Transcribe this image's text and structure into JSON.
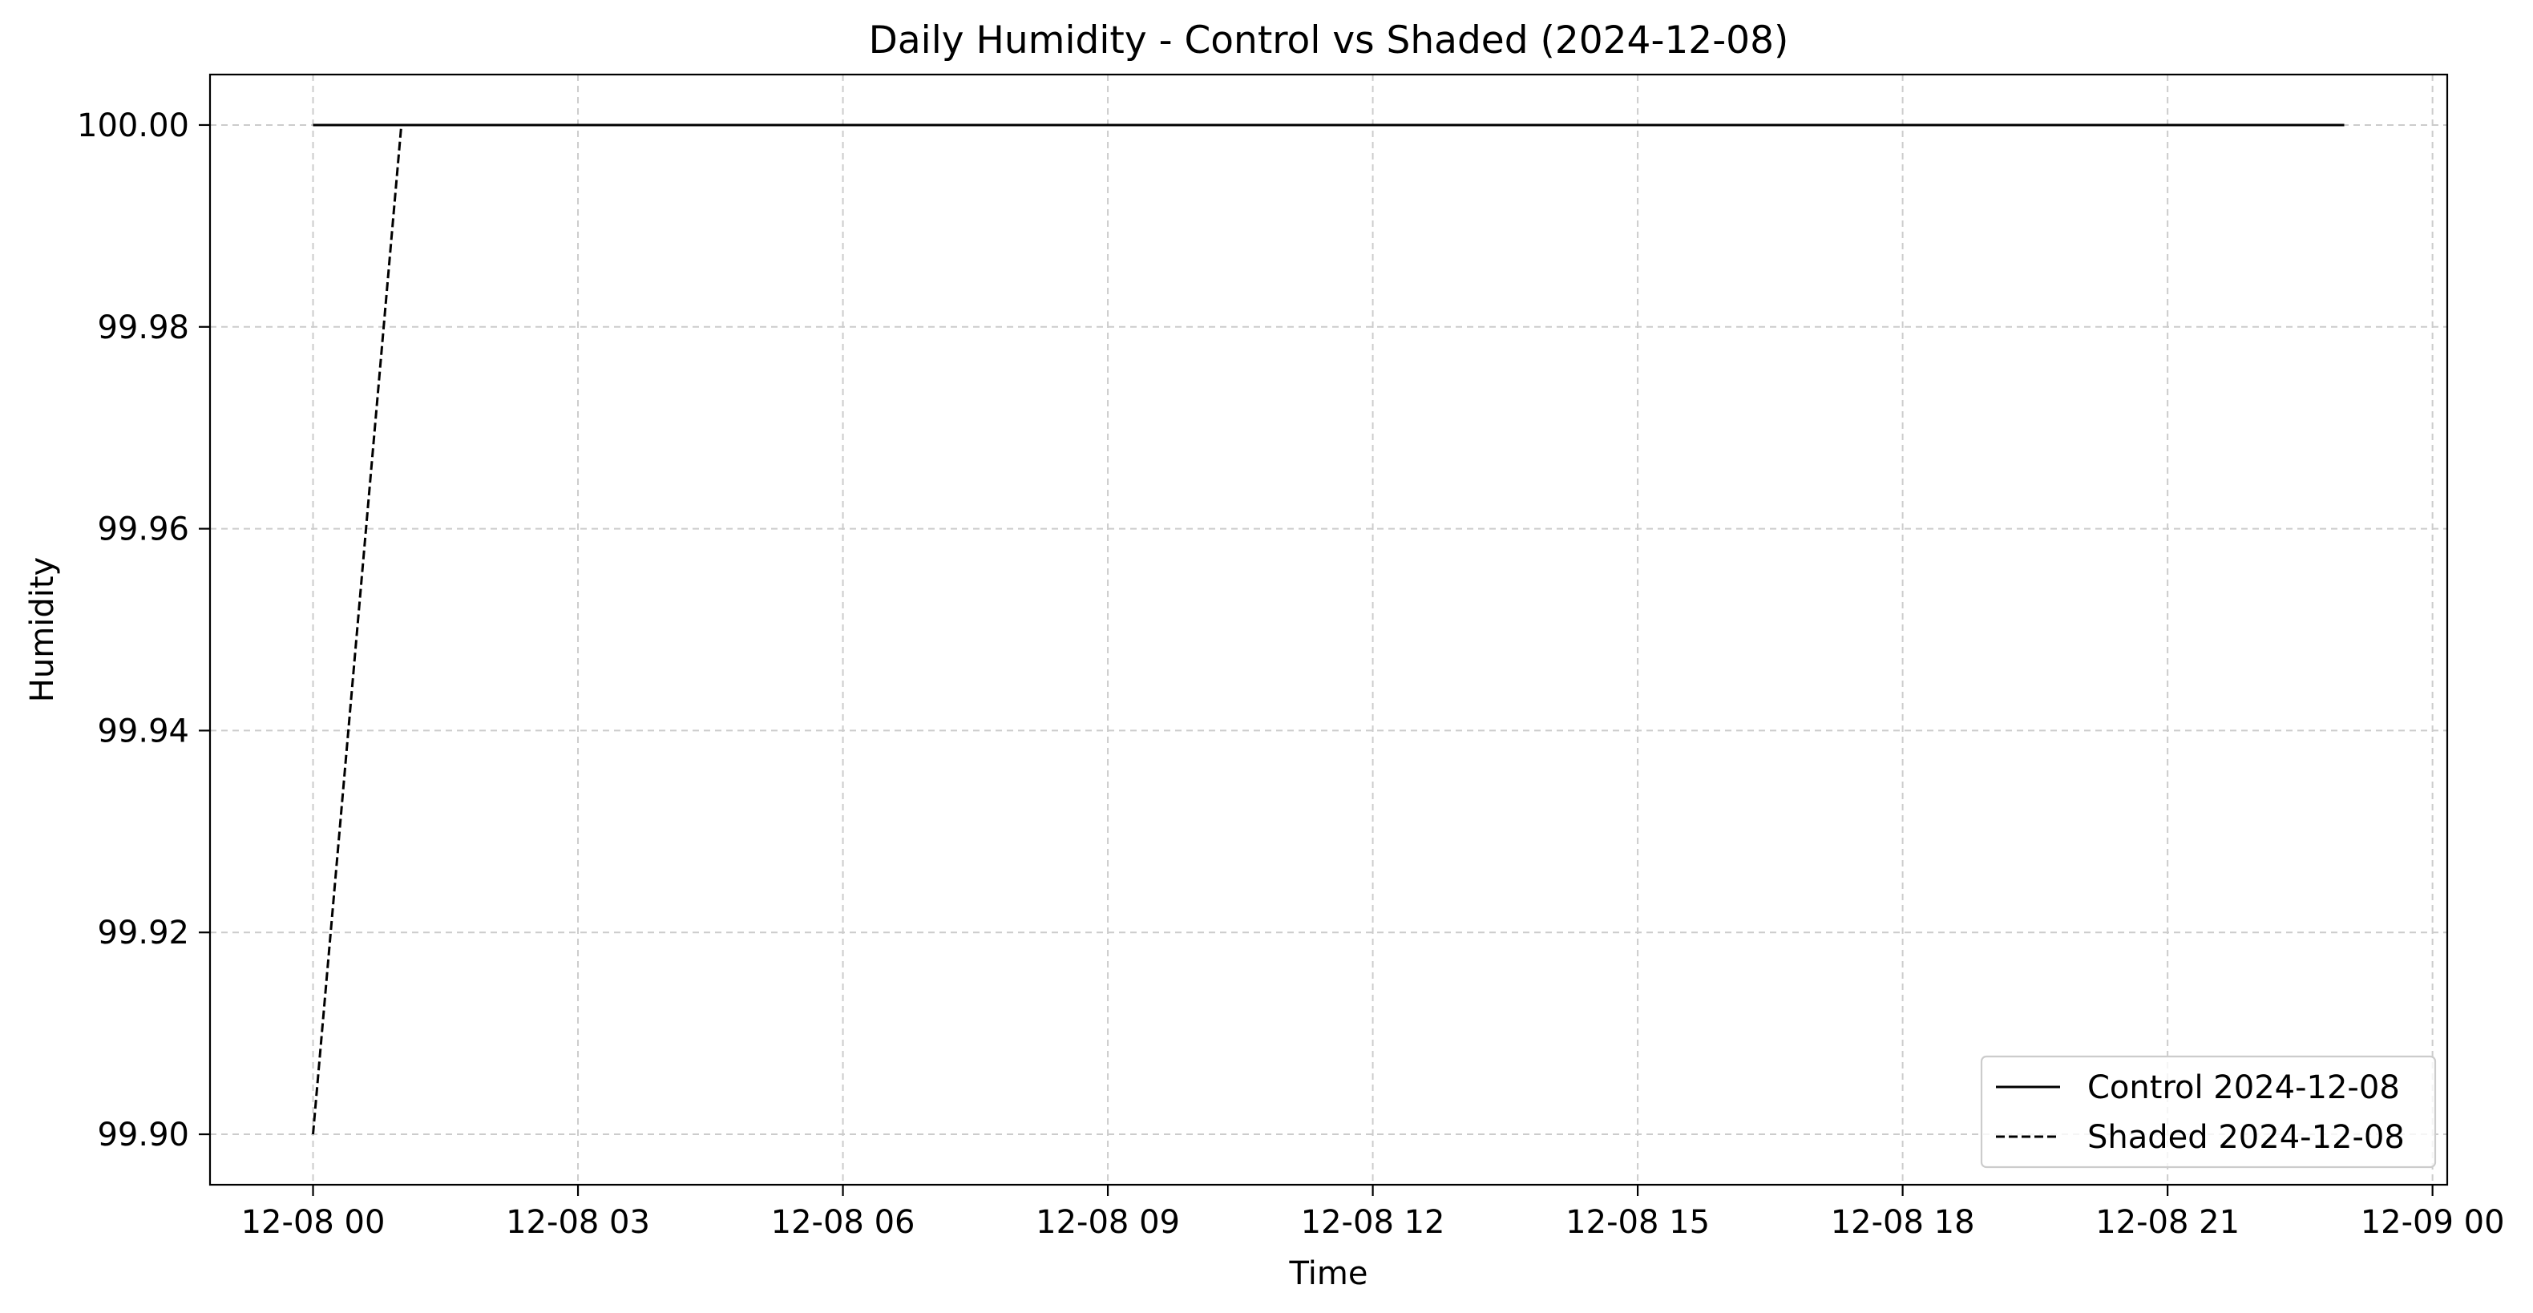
{
  "chart_data": {
    "type": "line",
    "title": "Daily Humidity - Control vs Shaded (2024-12-08)",
    "xlabel": "Time",
    "ylabel": "Humidity",
    "x_axis_type": "datetime",
    "xlim": [
      "2024-12-07T22:50",
      "2024-12-09T00:10"
    ],
    "ylim": [
      99.895,
      100.005
    ],
    "x_ticks": [
      {
        "value": "2024-12-08T00:00",
        "label": "12-08 00"
      },
      {
        "value": "2024-12-08T03:00",
        "label": "12-08 03"
      },
      {
        "value": "2024-12-08T06:00",
        "label": "12-08 06"
      },
      {
        "value": "2024-12-08T09:00",
        "label": "12-08 09"
      },
      {
        "value": "2024-12-08T12:00",
        "label": "12-08 12"
      },
      {
        "value": "2024-12-08T15:00",
        "label": "12-08 15"
      },
      {
        "value": "2024-12-08T18:00",
        "label": "12-08 18"
      },
      {
        "value": "2024-12-08T21:00",
        "label": "12-08 21"
      },
      {
        "value": "2024-12-09T00:00",
        "label": "12-09 00"
      }
    ],
    "y_ticks": [
      {
        "value": 99.9,
        "label": "99.90"
      },
      {
        "value": 99.92,
        "label": "99.92"
      },
      {
        "value": 99.94,
        "label": "99.94"
      },
      {
        "value": 99.96,
        "label": "99.96"
      },
      {
        "value": 99.98,
        "label": "99.98"
      },
      {
        "value": 100.0,
        "label": "100.00"
      }
    ],
    "grid": true,
    "legend_position": "lower-right",
    "series": [
      {
        "name": "Control 2024-12-08",
        "line_style": "solid",
        "color": "#000000",
        "points": [
          {
            "x": "2024-12-08T00:00",
            "y": 100.0
          },
          {
            "x": "2024-12-08T23:00",
            "y": 100.0
          }
        ]
      },
      {
        "name": "Shaded 2024-12-08",
        "line_style": "dashed",
        "color": "#000000",
        "points": [
          {
            "x": "2024-12-08T00:00",
            "y": 99.9
          },
          {
            "x": "2024-12-08T01:00",
            "y": 100.0
          },
          {
            "x": "2024-12-08T23:00",
            "y": 100.0
          }
        ]
      }
    ]
  }
}
